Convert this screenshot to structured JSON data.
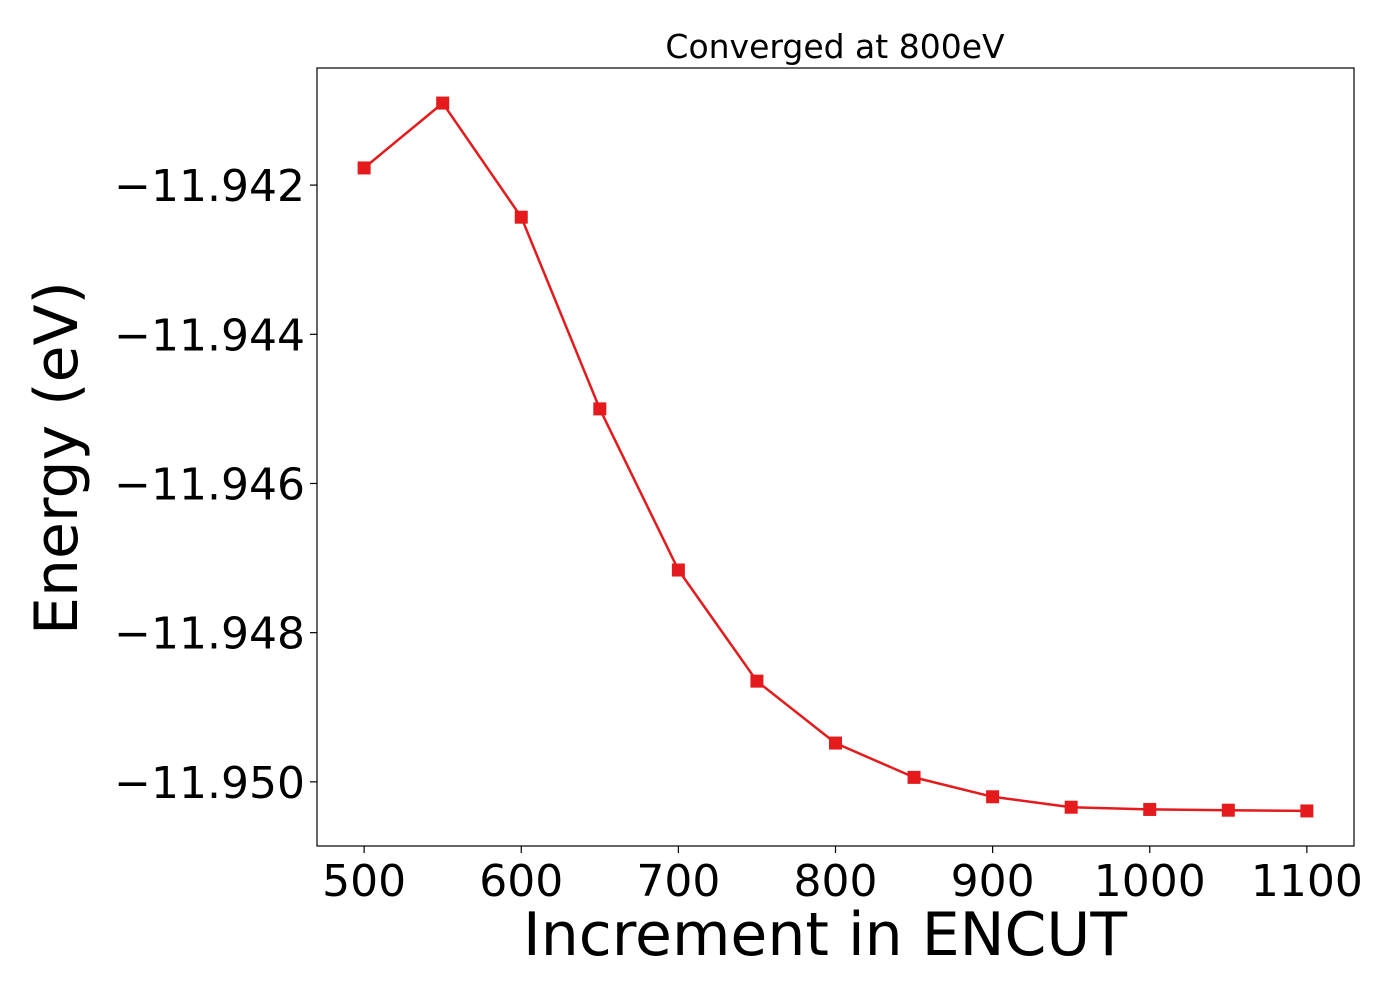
{
  "chart_data": {
    "type": "line",
    "title": "Converged at 800eV",
    "xlabel": "Increment in ENCUT",
    "ylabel": "Energy (eV)",
    "x": [
      500,
      550,
      600,
      650,
      700,
      750,
      800,
      850,
      900,
      950,
      1000,
      1050,
      1100
    ],
    "series": [
      {
        "name": "Energy",
        "values": [
          -11.94177,
          -11.9409,
          -11.94243,
          -11.945,
          -11.94716,
          -11.94865,
          -11.94948,
          -11.94994,
          -11.9502,
          -11.95034,
          -11.95037,
          -11.95038,
          -11.95039
        ],
        "color": "#e41a1c",
        "marker": "square"
      }
    ],
    "xticks": [
      500,
      600,
      700,
      800,
      900,
      1000,
      1100
    ],
    "xtick_labels": [
      "500",
      "600",
      "700",
      "800",
      "900",
      "1000",
      "1100"
    ],
    "yticks": [
      -11.942,
      -11.944,
      -11.946,
      -11.948,
      -11.95
    ],
    "ytick_labels": [
      "−11.942",
      "−11.944",
      "−11.946",
      "−11.948",
      "−11.950"
    ],
    "xlim": [
      470,
      1130
    ],
    "ylim": [
      -11.95086,
      -11.94043
    ],
    "grid": false,
    "legend": "none"
  }
}
